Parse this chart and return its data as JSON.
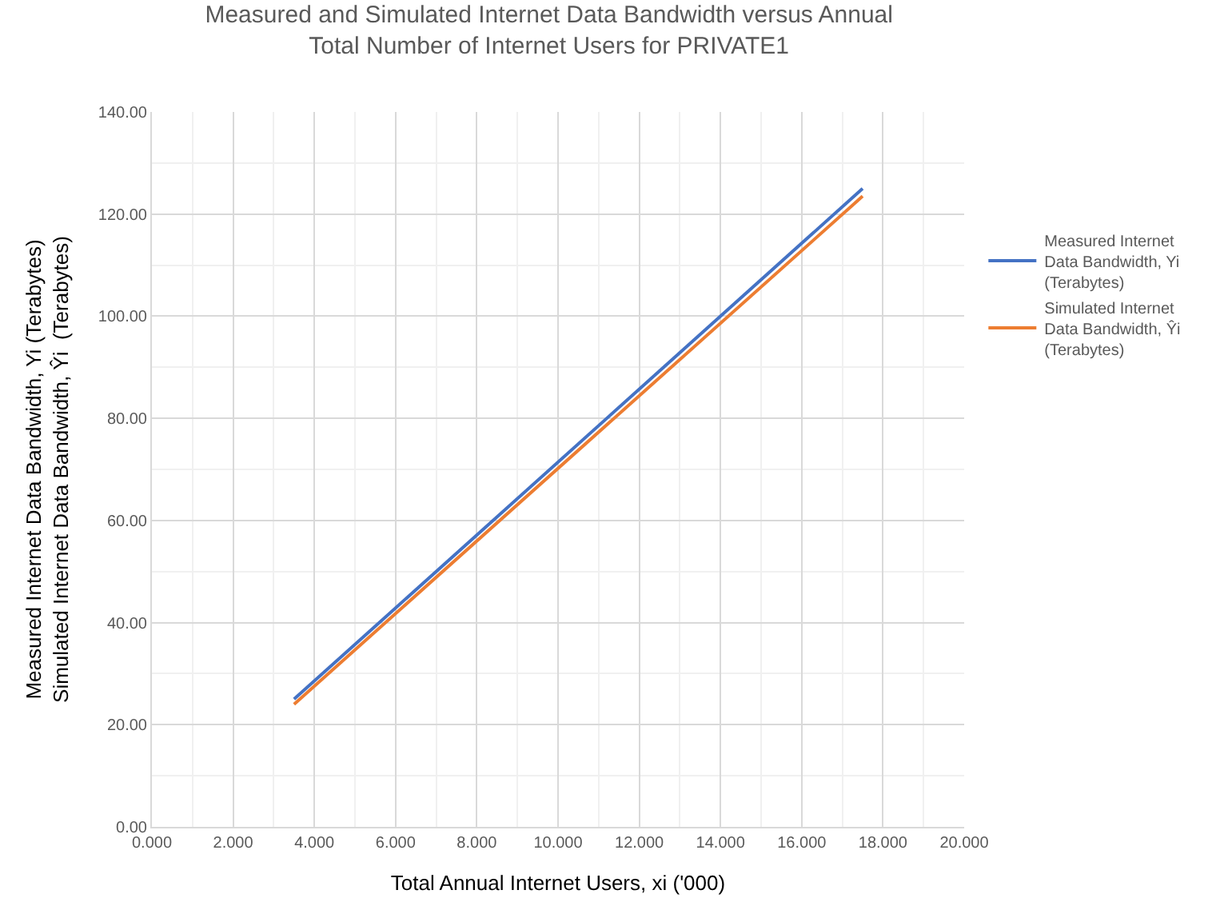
{
  "chart_data": {
    "type": "line",
    "title": "Measured and Simulated Internet Data Bandwidth versus Annual\nTotal Number of Internet Users for PRIVATE1",
    "xlabel": "Total Annual Internet Users, xi ('000)",
    "ylabel": "Measured Internet Data Bandwidth, Yi (Terabytes)\nSimulated Internet Data Bandwidth, Ŷi  (Terabytes)",
    "x": [
      3.5,
      17.5
    ],
    "series": [
      {
        "name": "Measured Internet Data Bandwidth, Yi (Terabytes)",
        "color": "#4472c4",
        "values": [
          25,
          125
        ]
      },
      {
        "name": "Simulated Internet Data Bandwidth, Ŷi (Terabytes)",
        "color": "#ed7d31",
        "values": [
          24,
          123.5
        ]
      }
    ],
    "xlim": [
      0,
      20
    ],
    "ylim": [
      0,
      140
    ],
    "xticks": [
      {
        "value": 0,
        "label": "0.000"
      },
      {
        "value": 2,
        "label": "2.000"
      },
      {
        "value": 4,
        "label": "4.000"
      },
      {
        "value": 6,
        "label": "6.000"
      },
      {
        "value": 8,
        "label": "8.000"
      },
      {
        "value": 10,
        "label": "10.000"
      },
      {
        "value": 12,
        "label": "12.000"
      },
      {
        "value": 14,
        "label": "14.000"
      },
      {
        "value": 16,
        "label": "16.000"
      },
      {
        "value": 18,
        "label": "18.000"
      },
      {
        "value": 20,
        "label": "20.000"
      }
    ],
    "yticks": [
      {
        "value": 0,
        "label": "0.00"
      },
      {
        "value": 20,
        "label": "20.00"
      },
      {
        "value": 40,
        "label": "40.00"
      },
      {
        "value": 60,
        "label": "60.00"
      },
      {
        "value": 80,
        "label": "80.00"
      },
      {
        "value": 100,
        "label": "100.00"
      },
      {
        "value": 120,
        "label": "120.00"
      },
      {
        "value": 140,
        "label": "140.00"
      }
    ],
    "grid": true,
    "legend": "right",
    "marker": "none",
    "line_style": "solid"
  }
}
